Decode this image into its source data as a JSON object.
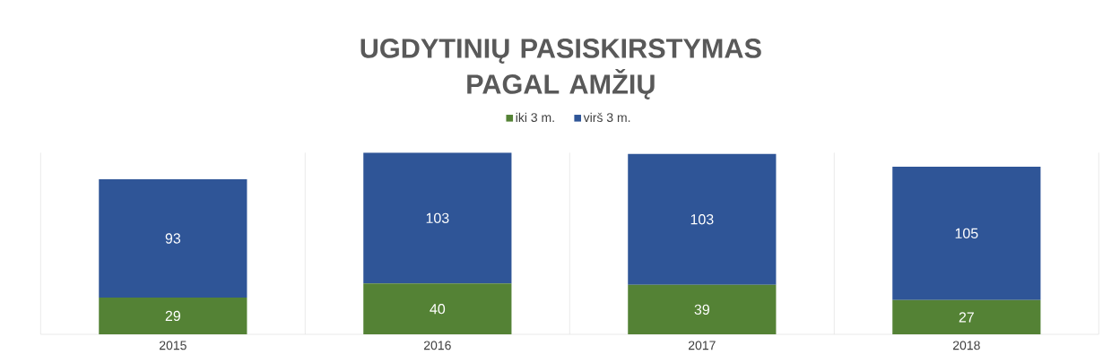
{
  "chart_data": {
    "type": "bar",
    "title": "UGDYTINIŲ PASISKIRSTYMAS\nPAGAL  AMŽIŲ",
    "categories": [
      "2015",
      "2016",
      "2017",
      "2018"
    ],
    "stacked": true,
    "data_labels": true,
    "grid": "x",
    "legend": "top",
    "tick_labels": "x",
    "series": [
      {
        "name": "iki 3 m.",
        "color": "#548235",
        "values": [
          29,
          40,
          39,
          27
        ]
      },
      {
        "name": "virš 3 m.",
        "color": "#2f5597",
        "values": [
          93,
          103,
          103,
          105
        ]
      }
    ]
  }
}
